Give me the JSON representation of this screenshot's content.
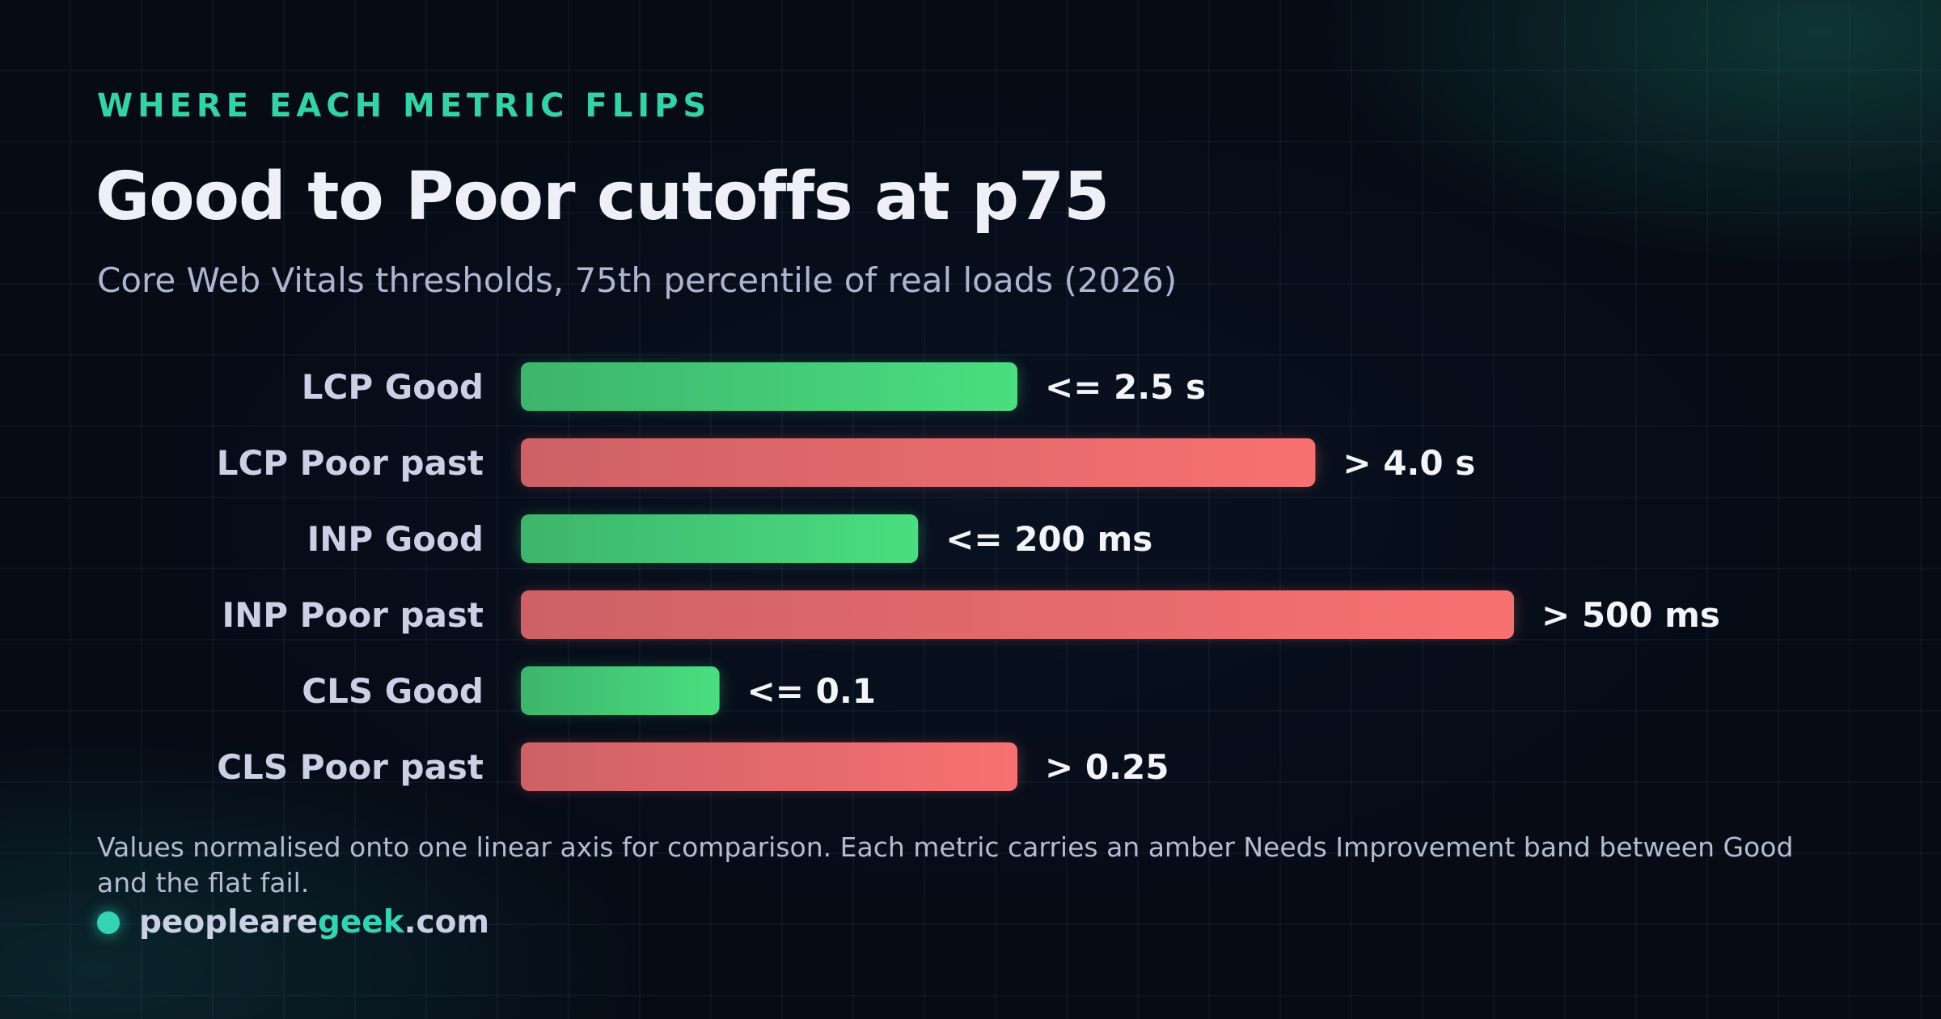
{
  "header": {
    "eyebrow": "WHERE EACH METRIC FLIPS",
    "title": "Good to Poor cutoffs at p75",
    "subtitle": "Core Web Vitals thresholds, 75th percentile of real loads (2026)"
  },
  "footnote": "Values normalised onto one linear axis for comparison. Each metric carries an amber Needs Improvement band between Good and the flat fail.",
  "brand": {
    "part1": "peopleare",
    "part2": "geek",
    "part3": ".com"
  },
  "colors": {
    "good_start": "#3db56c",
    "good_end": "#4ade80",
    "poor_start": "#cd6166",
    "poor_end": "#f87171",
    "label": "#cbd1e4",
    "value": "#f2f4fa",
    "accent": "#34d3a6"
  },
  "chart_data": {
    "type": "bar",
    "orientation": "horizontal",
    "categories": [
      "LCP Good",
      "LCP Poor past",
      "INP Good",
      "INP Poor past",
      "CLS Good",
      "CLS Poor past"
    ],
    "values": [
      2.5,
      4.0,
      2.0,
      5.0,
      1.0,
      2.5
    ],
    "value_labels": [
      "<= 2.5 s",
      "> 4.0 s",
      "<= 200 ms",
      "> 500 ms",
      "<= 0.1",
      "> 0.25"
    ],
    "status": [
      "good",
      "poor",
      "good",
      "poor",
      "good",
      "poor"
    ],
    "xlim": [
      0,
      5
    ],
    "grid": false,
    "legend": "none"
  }
}
